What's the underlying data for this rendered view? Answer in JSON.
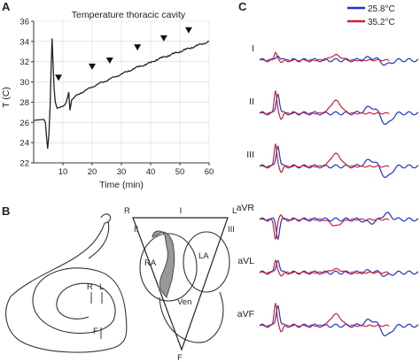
{
  "panels": {
    "a": "A",
    "b": "B",
    "c": "C"
  },
  "colors": {
    "cold": "#2233cc",
    "warm": "#cc2233",
    "trace_a": "#222222",
    "grid": "#d9d9d9"
  },
  "chart_data": [
    {
      "type": "line",
      "title": "Temperature thoracic cavity",
      "xlabel": "Time (min)",
      "ylabel": "T (C)",
      "xlim": [
        0,
        60
      ],
      "ylim": [
        22,
        36
      ],
      "xticks": [
        10,
        20,
        30,
        40,
        50,
        60
      ],
      "yticks": [
        22,
        24,
        26,
        28,
        30,
        32,
        34,
        36
      ],
      "grid": true,
      "series": [
        {
          "x": [
            0,
            3.5,
            4.0,
            4.4,
            4.8,
            5.2,
            5.6,
            6.0,
            6.3,
            6.6,
            7.0,
            7.4,
            8.0,
            9.0,
            10,
            10.5,
            11,
            11.6,
            12,
            12.4,
            13,
            14,
            16,
            18,
            20,
            22,
            24,
            26,
            28,
            30,
            32,
            34,
            36,
            38,
            40,
            42,
            44,
            46,
            48,
            50,
            52,
            54,
            56,
            58,
            60
          ],
          "y": [
            26.2,
            26.3,
            26.0,
            24.6,
            23.4,
            24.8,
            27.5,
            31.6,
            34.3,
            32.0,
            29.3,
            28.0,
            27.4,
            27.5,
            27.6,
            27.7,
            27.9,
            28.5,
            29.0,
            27.2,
            28.2,
            28.5,
            28.9,
            29.2,
            29.5,
            29.8,
            30.0,
            30.3,
            30.5,
            30.8,
            31.0,
            31.3,
            31.5,
            31.7,
            31.9,
            32.2,
            32.4,
            32.6,
            32.8,
            33.0,
            33.2,
            33.4,
            33.6,
            33.8,
            34.0
          ]
        }
      ],
      "arrow_marks": [
        {
          "x": 8.5,
          "y": 29.4
        },
        {
          "x": 20,
          "y": 30.5
        },
        {
          "x": 26,
          "y": 31.1
        },
        {
          "x": 35.5,
          "y": 32.4
        },
        {
          "x": 44.5,
          "y": 33.3
        },
        {
          "x": 53,
          "y": 34.1
        }
      ]
    },
    {
      "type": "line",
      "legend": [
        "25.8°C",
        "35.2°C"
      ],
      "leads": [
        {
          "name": "I",
          "amp": 0.35,
          "t_amp": 0.22,
          "cold_amp": 0.25
        },
        {
          "name": "II",
          "amp": 1.0,
          "t_amp": 0.55,
          "cold_amp": 0.9
        },
        {
          "name": "III",
          "amp": 1.0,
          "t_amp": 0.55,
          "cold_amp": 0.95
        },
        {
          "name": "aVR",
          "amp": -0.85,
          "t_amp": -0.28,
          "cold_amp": -0.8
        },
        {
          "name": "aVL",
          "amp": 0.55,
          "t_amp": 0.15,
          "cold_amp": 0.6
        },
        {
          "name": "aVF",
          "amp": 1.0,
          "t_amp": 0.5,
          "cold_amp": 0.95
        }
      ]
    }
  ],
  "diagram": {
    "triangle_labels": {
      "r": "R",
      "l": "L",
      "f": "F",
      "i": "I",
      "ii": "II",
      "iii": "III"
    },
    "chambers": {
      "ra": "RA",
      "la": "LA",
      "ven": "Ven"
    },
    "snake_labels": {
      "r": "R",
      "l": "L",
      "f": "F"
    }
  }
}
